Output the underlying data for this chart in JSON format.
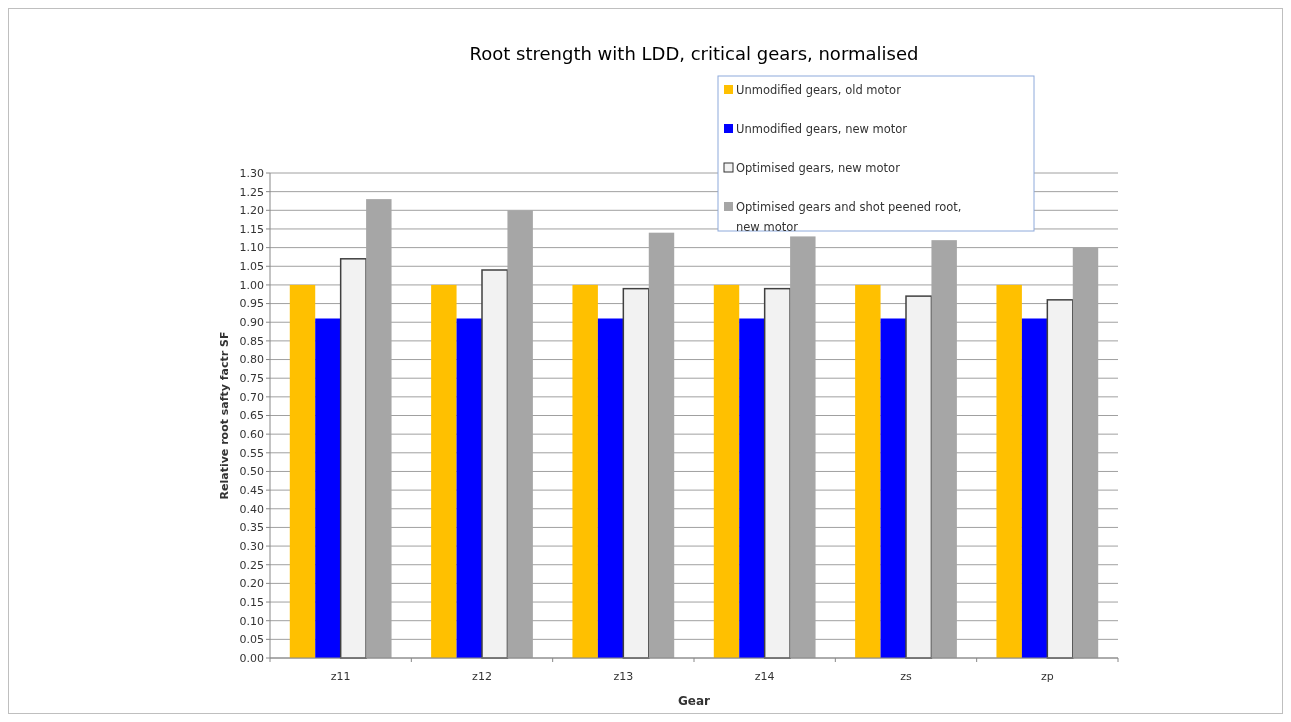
{
  "chart_data": {
    "type": "bar",
    "title": "Root strength with LDD, critical gears, normalised",
    "xlabel": "Gear",
    "ylabel": "Relative root safty factr SF",
    "categories": [
      "z11",
      "z12",
      "z13",
      "z14",
      "zs",
      "zp"
    ],
    "series": [
      {
        "name": "Unmodified gears, old motor",
        "color": "#ffc000",
        "values": [
          1.0,
          1.0,
          1.0,
          1.0,
          1.0,
          1.0
        ]
      },
      {
        "name": "Unmodified gears, new motor",
        "color": "#0000ff",
        "values": [
          0.91,
          0.91,
          0.91,
          0.91,
          0.91,
          0.91
        ]
      },
      {
        "name": "Optimised gears, new motor",
        "color": "#f2f2f2",
        "values": [
          1.07,
          1.04,
          0.99,
          0.99,
          0.97,
          0.96
        ]
      },
      {
        "name": "Optimised gears and shot peened root, new motor",
        "color": "#a6a6a6",
        "values": [
          1.23,
          1.2,
          1.14,
          1.13,
          1.12,
          1.1
        ]
      }
    ],
    "ylim": [
      0,
      1.3
    ],
    "yticks": [
      {
        "value": 0,
        "label": "0.00"
      },
      {
        "value": 0.05,
        "label": "0.05"
      },
      {
        "value": 0.1,
        "label": "0.10"
      },
      {
        "value": 0.15,
        "label": "0.15"
      },
      {
        "value": 0.2,
        "label": "0.20"
      },
      {
        "value": 0.25,
        "label": "0.25"
      },
      {
        "value": 0.3,
        "label": "0.30"
      },
      {
        "value": 0.35,
        "label": "0.35"
      },
      {
        "value": 0.4,
        "label": "0.40"
      },
      {
        "value": 0.45,
        "label": "0.45"
      },
      {
        "value": 0.5,
        "label": "0.50"
      },
      {
        "value": 0.55,
        "label": "0.55"
      },
      {
        "value": 0.6,
        "label": "0.60"
      },
      {
        "value": 0.65,
        "label": "0.65"
      },
      {
        "value": 0.7,
        "label": "0.70"
      },
      {
        "value": 0.75,
        "label": "0.75"
      },
      {
        "value": 0.8,
        "label": "0.80"
      },
      {
        "value": 0.85,
        "label": "0.85"
      },
      {
        "value": 0.9,
        "label": "0.90"
      },
      {
        "value": 0.95,
        "label": "0.95"
      },
      {
        "value": 1.0,
        "label": "1.00"
      },
      {
        "value": 1.05,
        "label": "1.05"
      },
      {
        "value": 1.1,
        "label": "1.10"
      },
      {
        "value": 1.15,
        "label": "1.15"
      },
      {
        "value": 1.2,
        "label": "1.20"
      },
      {
        "value": 1.25,
        "label": "1.25"
      },
      {
        "value": 1.3,
        "label": "1.30"
      }
    ],
    "grid": "y",
    "legend": "top right"
  }
}
